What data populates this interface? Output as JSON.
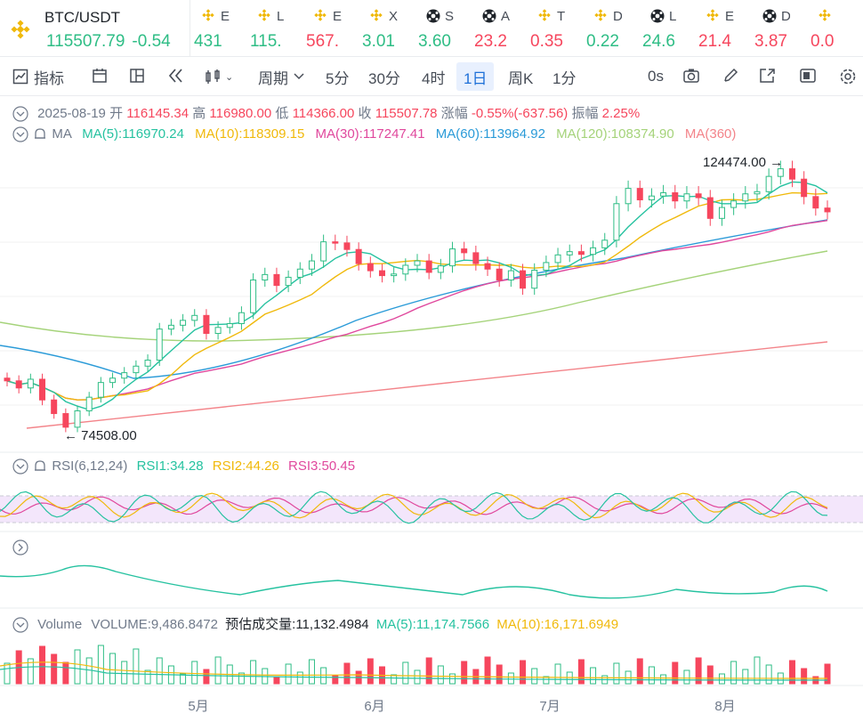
{
  "ticker": {
    "main": {
      "symbol": "BTC/USDT",
      "price": "115507.79",
      "change": "-0.54"
    },
    "items": [
      {
        "letter": "E",
        "value": "431",
        "color": "g",
        "icon": "bnb-icon"
      },
      {
        "letter": "L",
        "value": "115.",
        "color": "g",
        "icon": "bnb-icon"
      },
      {
        "letter": "E",
        "value": "567.",
        "color": "r",
        "icon": "bnb-icon"
      },
      {
        "letter": "X",
        "value": "3.01",
        "color": "g",
        "icon": "bnb-icon"
      },
      {
        "letter": "S",
        "value": "3.60",
        "color": "g",
        "icon": "soccer-ball-icon"
      },
      {
        "letter": "A",
        "value": "23.2",
        "color": "r",
        "icon": "soccer-ball-icon"
      },
      {
        "letter": "T",
        "value": "0.35",
        "color": "r",
        "icon": "bnb-icon"
      },
      {
        "letter": "D",
        "value": "0.22",
        "color": "g",
        "icon": "bnb-icon"
      },
      {
        "letter": "L",
        "value": "24.6",
        "color": "g",
        "icon": "soccer-ball-icon"
      },
      {
        "letter": "E",
        "value": "21.4",
        "color": "r",
        "icon": "bnb-icon"
      },
      {
        "letter": "D",
        "value": "3.87",
        "color": "r",
        "icon": "soccer-ball-icon"
      },
      {
        "letter": "",
        "value": "0.0",
        "color": "r",
        "icon": "bnb-icon"
      }
    ]
  },
  "toolbar": {
    "indicators": "指标",
    "period": "周期",
    "intervals": [
      "5分",
      "30分",
      "4时",
      "1日",
      "周K",
      "1分"
    ],
    "selected": "1日",
    "countdown": "0s"
  },
  "ohlc": {
    "date": "2025-08-19",
    "open_label": "开",
    "open": "116145.34",
    "high_label": "高",
    "high": "116980.00",
    "low_label": "低",
    "low": "114366.00",
    "close_label": "收",
    "close": "115507.78",
    "change_label": "涨幅",
    "change": "-0.55%(-637.56)",
    "amp_label": "振幅",
    "amp": "2.25%"
  },
  "ma": {
    "label": "MA",
    "ma5": "MA(5):116970.24",
    "ma10": "MA(10):118309.15",
    "ma30": "MA(30):117247.41",
    "ma60": "MA(60):113964.92",
    "ma120": "MA(120):108374.90",
    "ma360": "MA(360)"
  },
  "annotations": {
    "high": "124474.00",
    "low": "74508.00"
  },
  "rsi": {
    "label": "RSI(6,12,24)",
    "rsi1": "RSI1:34.28",
    "rsi2": "RSI2:44.26",
    "rsi3": "RSI3:50.45"
  },
  "volume": {
    "label": "Volume",
    "volume": "VOLUME:9,486.8472",
    "estimate": "预估成交量:11,132.4984",
    "ma5": "MA(5):11,174.7566",
    "ma10": "MA(10):16,171.6949"
  },
  "xaxis": [
    "5月",
    "6月",
    "7月",
    "8月"
  ],
  "colors": {
    "up": "#2ebd85",
    "down": "#f6465d",
    "ma5": "#26c2a0",
    "ma10": "#f0b90b",
    "ma30": "#e0489d",
    "ma60": "#2b9bd8",
    "ma120": "#a5d37a",
    "ma360": "#f3848a"
  },
  "chart_data": {
    "type": "line",
    "series": [
      {
        "name": "BTC/USDT 1日 close",
        "values": [
          84500,
          83200,
          84800,
          81000,
          78500,
          76000,
          79000,
          81500,
          84200,
          85000,
          86000,
          87200,
          88300,
          94000,
          94700,
          95600,
          96500,
          93200,
          94300,
          95000,
          97000,
          103000,
          104000,
          102000,
          103500,
          105000,
          106500,
          110000,
          109800,
          108600,
          106000,
          104700,
          103800,
          104100,
          105700,
          106500,
          104400,
          105600,
          108700,
          108000,
          106000,
          105000,
          103000,
          104700,
          101500,
          104800,
          106200,
          107600,
          108200,
          107700,
          108900,
          110300,
          117000,
          119800,
          117700,
          118400,
          119000,
          117500,
          118800,
          118100,
          114300,
          116300,
          117500,
          118800,
          119200,
          122000,
          123400,
          121500,
          118300,
          116200,
          115500
        ]
      }
    ]
  }
}
